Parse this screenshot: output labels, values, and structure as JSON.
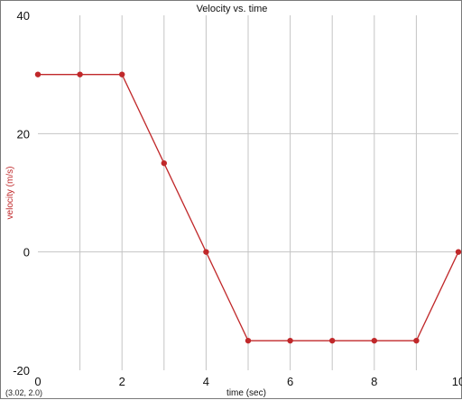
{
  "chart_data": {
    "type": "line",
    "title": "Velocity vs. time",
    "xlabel": "time (sec)",
    "ylabel": "velocity (m/s)",
    "xlim": [
      0,
      10
    ],
    "ylim": [
      -20,
      40
    ],
    "x_ticks": [
      0,
      2,
      4,
      6,
      8,
      10
    ],
    "y_ticks": [
      -20,
      0,
      20,
      40
    ],
    "x_tick_labels": [
      "0",
      "2",
      "4",
      "6",
      "8",
      "10"
    ],
    "y_tick_labels": [
      "-20",
      "0",
      "20",
      "40"
    ],
    "grid": true,
    "series": [
      {
        "x": [
          0,
          1,
          2,
          3,
          4,
          5,
          6,
          7,
          8,
          9,
          10
        ],
        "y": [
          30,
          30,
          30,
          15,
          0,
          -15,
          -15,
          -15,
          -15,
          -15,
          0
        ],
        "color": "#c0282a"
      }
    ]
  },
  "cursor_readout": "(3.02, 2.0)",
  "colors": {
    "grid": "#c4c4c4",
    "axis_text": "#111111",
    "series": "#c0282a",
    "ylabel": "#c0282a"
  }
}
